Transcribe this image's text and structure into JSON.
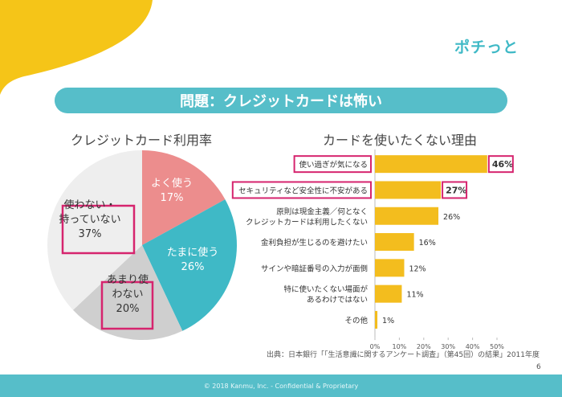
{
  "slide": {
    "title": "問題：クレジットカードは怖い",
    "logo": "ポチっと",
    "source": "出典：日本銀行「「生活意識に関するアンケート調査」（第45回）の結果」2011年度",
    "page_number": "6",
    "footer": "© 2018 Kanmu, Inc. - Confidential & Proprietary"
  },
  "colors": {
    "accent": "#56bec9",
    "highlight_box": "#d6246e",
    "bar": "#f3bd1e",
    "swoosh": "#f5c518",
    "pie_often": "#ec8d8d",
    "pie_sometimes": "#3fb9c6",
    "pie_rarely": "#cfcfcf",
    "pie_never": "#eeeeee"
  },
  "chart_data": [
    {
      "type": "pie",
      "title": "クレジットカード利用率",
      "slices": [
        {
          "label_lines": [
            "よく使う"
          ],
          "value": 17,
          "value_label": "17%",
          "color": "#ec8d8d",
          "text_color": "#ffffff",
          "highlighted": false
        },
        {
          "label_lines": [
            "たまに使う"
          ],
          "value": 26,
          "value_label": "26%",
          "color": "#3fb9c6",
          "text_color": "#ffffff",
          "highlighted": false
        },
        {
          "label_lines": [
            "あまり使",
            "わない"
          ],
          "value": 20,
          "value_label": "20%",
          "color": "#cfcfcf",
          "text_color": "#333333",
          "highlighted": true
        },
        {
          "label_lines": [
            "使わない・",
            "持っていない"
          ],
          "value": 37,
          "value_label": "37%",
          "color": "#eeeeee",
          "text_color": "#333333",
          "highlighted": true
        }
      ]
    },
    {
      "type": "bar",
      "orientation": "horizontal",
      "title": "カードを使いたくない理由",
      "categories": [
        [
          "使い過ぎが気になる"
        ],
        [
          "セキュリティなど安全性に不安がある"
        ],
        [
          "原則は現金主義／何となく",
          "クレジットカードは利用したくない"
        ],
        [
          "金利負担が生じるのを避けたい"
        ],
        [
          "サインや暗証番号の入力が面倒"
        ],
        [
          "特に使いたくない場面が",
          "あるわけではない"
        ],
        [
          "その他"
        ]
      ],
      "values": [
        46,
        27,
        26,
        16,
        12,
        11,
        1
      ],
      "value_labels": [
        "46%",
        "27%",
        "26%",
        "16%",
        "12%",
        "11%",
        "1%"
      ],
      "highlighted": [
        true,
        true,
        false,
        false,
        false,
        false,
        false
      ],
      "xlim": [
        0,
        50
      ],
      "xticks": [
        0,
        10,
        20,
        30,
        40,
        50
      ],
      "xtick_labels": [
        "0%",
        "10%",
        "20%",
        "30%",
        "40%",
        "50%"
      ],
      "color": "#f3bd1e"
    }
  ]
}
